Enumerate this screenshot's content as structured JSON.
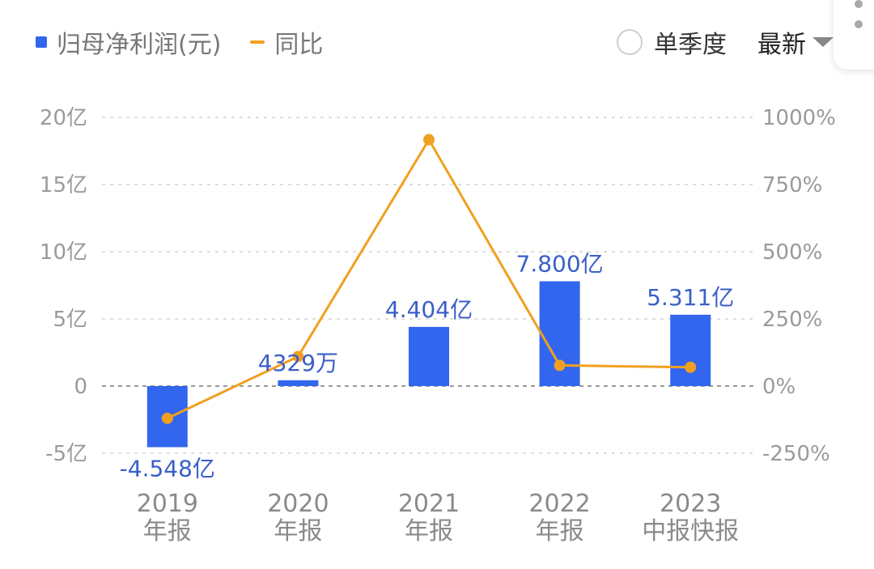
{
  "legend": {
    "bar_label": "归母净利润(元)",
    "line_label": "同比",
    "bar_color": "#3366ee",
    "line_color": "#f0a020"
  },
  "controls": {
    "quarterly_label": "单季度",
    "dropdown_label": "最新"
  },
  "chart_data": {
    "type": "bar+line",
    "categories": [
      [
        "2019",
        "年报"
      ],
      [
        "2020",
        "年报"
      ],
      [
        "2021",
        "年报"
      ],
      [
        "2022",
        "年报"
      ],
      [
        "2023",
        "中报快报"
      ]
    ],
    "series": [
      {
        "name": "归母净利润(元)",
        "type": "bar",
        "axis": "left",
        "values": [
          -4.548,
          0.4329,
          4.404,
          7.8,
          5.311
        ],
        "labels": [
          "-4.548亿",
          "4329万",
          "4.404亿",
          "7.800亿",
          "5.311亿"
        ],
        "color": "#3366ee"
      },
      {
        "name": "同比",
        "type": "line",
        "axis": "right",
        "values": [
          -120,
          110,
          917,
          77,
          70
        ],
        "color": "#f0a020"
      }
    ],
    "y_left": {
      "ticks": [
        "-5亿",
        "0",
        "5亿",
        "10亿",
        "15亿",
        "20亿"
      ],
      "tick_values": [
        -5,
        0,
        5,
        10,
        15,
        20
      ],
      "range": [
        -5,
        20
      ]
    },
    "y_right": {
      "ticks": [
        "-250%",
        "0%",
        "250%",
        "500%",
        "750%",
        "1000%"
      ],
      "tick_values": [
        -250,
        0,
        250,
        500,
        750,
        1000
      ],
      "range": [
        -250,
        1000
      ]
    },
    "grid": true
  }
}
